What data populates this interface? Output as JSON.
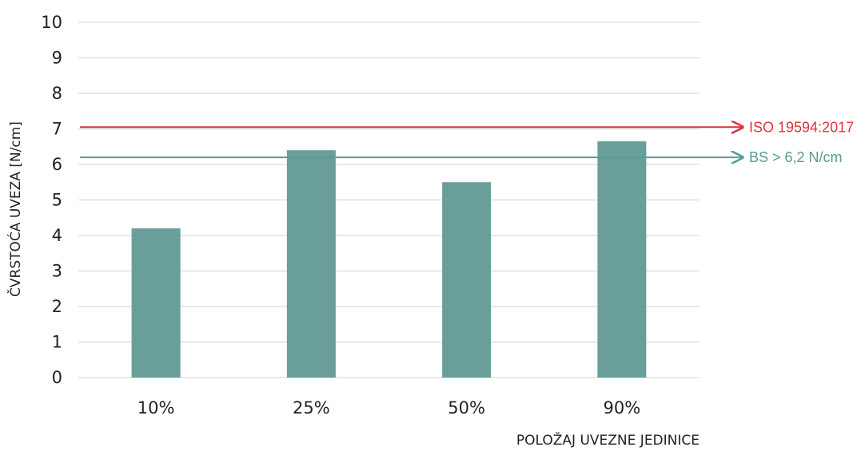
{
  "chart_data": {
    "type": "bar",
    "categories": [
      "10%",
      "25%",
      "50%",
      "90%"
    ],
    "values": [
      4.2,
      6.4,
      5.5,
      6.65
    ],
    "xlabel": "POLOŽAJ UVEZNE JEDINICE",
    "ylabel": "ČVRSTOĆA UVEZA [N/cm]",
    "ylim": [
      0,
      10
    ],
    "yticks": [
      0,
      1,
      2,
      3,
      4,
      5,
      6,
      7,
      8,
      9,
      10
    ],
    "grid": true,
    "bar_color": "#6a9e9a",
    "grid_color": "#d9d9d9",
    "reference_lines": [
      {
        "label": "ISO 19594:2017",
        "value": 7.05,
        "color": "#e0303c"
      },
      {
        "label": "BS > 6,2 N/cm",
        "value": 6.2,
        "color": "#5a9b95"
      }
    ]
  }
}
